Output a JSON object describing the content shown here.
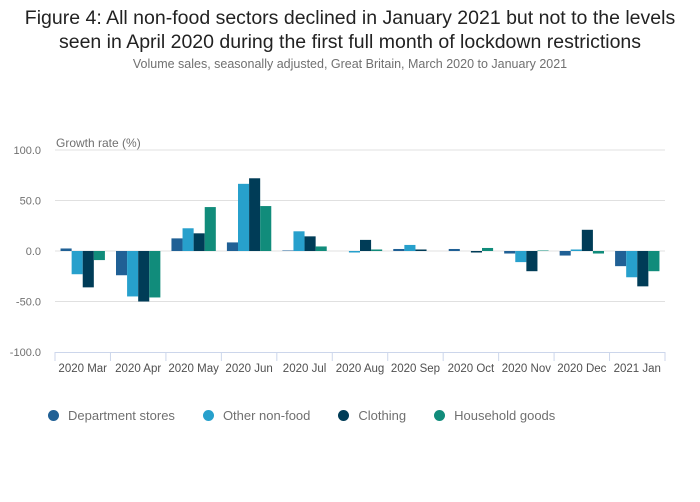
{
  "title": "Figure 4: All non-food sectors declined in January 2021 but not to the levels seen in April 2020 during the first full month of lockdown restrictions",
  "title_lines": [
    "Figure 4: All non-food sectors declined in January 2021 but not to the levels",
    "seen in April 2020 during the first full month of lockdown restrictions"
  ],
  "subtitle": "Volume sales, seasonally adjusted, Great Britain, March 2020 to January 2021",
  "chart_data": {
    "type": "bar",
    "title": "Figure 4: All non-food sectors declined in January 2021 but not to the levels seen in April 2020 during the first full month of lockdown restrictions",
    "subtitle": "Volume sales, seasonally adjusted, Great Britain, March 2020 to January 2021",
    "xlabel": "",
    "ylabel": "Growth rate (%)",
    "ylim": [
      -100,
      100
    ],
    "yticks": [
      100,
      50,
      0,
      -50,
      -100
    ],
    "ytick_labels": [
      "100.0",
      "50.0",
      "0.0",
      "-50.0",
      "-100.0"
    ],
    "grid": true,
    "legend_position": "bottom-left",
    "categories": [
      "2020 Mar",
      "2020 Apr",
      "2020 May",
      "2020 Jun",
      "2020 Jul",
      "2020 Aug",
      "2020 Sep",
      "2020 Oct",
      "2020 Nov",
      "2020 Dec",
      "2021 Jan"
    ],
    "series": [
      {
        "name": "Department stores",
        "color": "#206095",
        "values": [
          2.5,
          -24,
          12.5,
          8.5,
          0.5,
          0,
          2,
          2,
          -2.5,
          -4.5,
          -15
        ]
      },
      {
        "name": "Other non-food",
        "color": "#27a0cc",
        "values": [
          -23,
          -45,
          22.5,
          66.5,
          19.5,
          -1.5,
          6,
          0,
          -11,
          1.5,
          -26
        ]
      },
      {
        "name": "Clothing",
        "color": "#003c57",
        "values": [
          -36,
          -50,
          17.5,
          72,
          14.5,
          11,
          1.5,
          -1.5,
          -20,
          21,
          -35
        ]
      },
      {
        "name": "Household goods",
        "color": "#118c7b",
        "values": [
          -9,
          -46,
          43.5,
          44.5,
          4.5,
          1.5,
          0,
          3,
          0.5,
          -2.5,
          -20
        ]
      }
    ]
  }
}
